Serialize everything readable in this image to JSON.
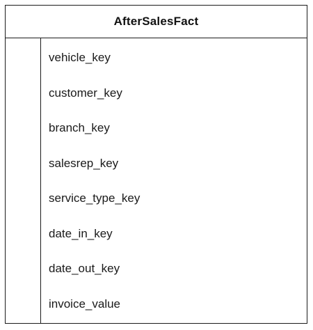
{
  "entity": {
    "title": "AfterSalesFact",
    "fields": [
      "vehicle_key",
      "customer_key",
      "branch_key",
      "salesrep_key",
      "service_type_key",
      "date_in_key",
      "date_out_key",
      "invoice_value"
    ]
  }
}
